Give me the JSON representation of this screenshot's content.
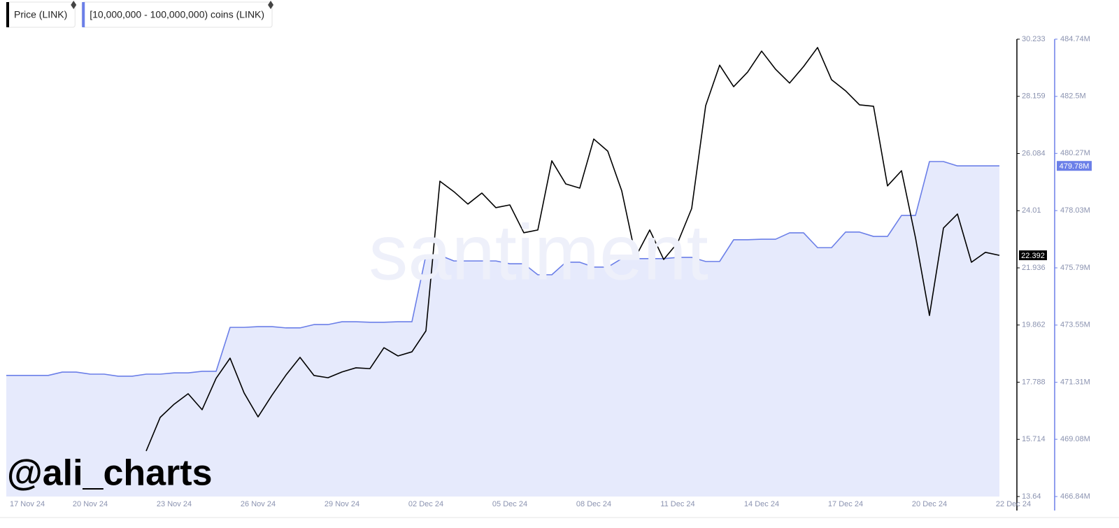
{
  "chart_data": {
    "type": "line",
    "watermark": "santiment",
    "credit": "@ali_charts",
    "categories": [
      "17 Nov 24",
      null,
      null,
      null,
      null,
      null,
      "20 Nov 24",
      null,
      null,
      null,
      null,
      null,
      "23 Nov 24",
      null,
      null,
      null,
      null,
      null,
      "26 Nov 24",
      null,
      null,
      null,
      null,
      null,
      "29 Nov 24",
      null,
      null,
      null,
      null,
      null,
      "02 Dec 24",
      null,
      null,
      null,
      null,
      null,
      "05 Dec 24",
      null,
      null,
      null,
      null,
      null,
      "08 Dec 24",
      null,
      null,
      null,
      null,
      null,
      "11 Dec 24",
      null,
      null,
      null,
      null,
      null,
      "14 Dec 24",
      null,
      null,
      null,
      null,
      null,
      "17 Dec 24",
      null,
      null,
      null,
      null,
      null,
      "20 Dec 24",
      null,
      null,
      null,
      null,
      null,
      "22 Dec 24"
    ],
    "series": [
      {
        "name": "Price (LINK)",
        "color": "#000000",
        "axis": "y",
        "values": [
          null,
          null,
          null,
          null,
          null,
          null,
          null,
          null,
          null,
          null,
          15.29,
          16.51,
          16.99,
          17.37,
          16.79,
          17.93,
          18.66,
          17.4,
          16.53,
          17.32,
          18.05,
          18.69,
          18.03,
          17.95,
          18.16,
          18.31,
          18.28,
          19.04,
          18.74,
          18.89,
          19.65,
          25.08,
          24.7,
          24.25,
          24.65,
          24.12,
          24.22,
          23.21,
          23.31,
          25.82,
          24.98,
          24.83,
          26.61,
          26.17,
          24.73,
          22.34,
          23.31,
          22.24,
          22.85,
          24.09,
          27.82,
          29.29,
          28.51,
          29.04,
          29.8,
          29.14,
          28.64,
          29.24,
          29.93,
          28.76,
          28.36,
          27.85,
          27.8,
          24.91,
          25.46,
          23.03,
          20.21,
          23.38,
          23.89,
          22.14,
          22.5,
          22.39,
          null
        ]
      },
      {
        "name": "[10,000,000 - 100,000,000) coins (LINK)",
        "color": "#6b7fe8",
        "area_color": "#e6eafc",
        "axis": "y2",
        "values": [
          471580000,
          471580000,
          471580000,
          471580000,
          471710000,
          471710000,
          471630000,
          471630000,
          471550000,
          471550000,
          471630000,
          471630000,
          471680000,
          471680000,
          471740000,
          471740000,
          473460000,
          473460000,
          473490000,
          473490000,
          473440000,
          473440000,
          473570000,
          473570000,
          473680000,
          473680000,
          473660000,
          473660000,
          473680000,
          473680000,
          476280000,
          476280000,
          476060000,
          476060000,
          476060000,
          476060000,
          475950000,
          475950000,
          475520000,
          475520000,
          476010000,
          476010000,
          475820000,
          475820000,
          476150000,
          476150000,
          476150000,
          476150000,
          476200000,
          476200000,
          476040000,
          476040000,
          476890000,
          476890000,
          476910000,
          476910000,
          477160000,
          477160000,
          476580000,
          476580000,
          477190000,
          477190000,
          477020000,
          477020000,
          477840000,
          477840000,
          479950000,
          479950000,
          479780000,
          479780000,
          479780000,
          479780000,
          null
        ]
      }
    ],
    "ylim": [
      13.64,
      30.233
    ],
    "yticks": [
      13.64,
      15.714,
      17.788,
      19.862,
      21.936,
      24.01,
      26.084,
      28.159,
      30.233
    ],
    "y2lim": [
      466840000,
      484740000
    ],
    "y2ticks": [
      {
        "value": 466840000,
        "label": "466.84M"
      },
      {
        "value": 469080000,
        "label": "469.08M"
      },
      {
        "value": 471310000,
        "label": "471.31M"
      },
      {
        "value": 473550000,
        "label": "473.55M"
      },
      {
        "value": 475790000,
        "label": "475.79M"
      },
      {
        "value": 478030000,
        "label": "478.03M"
      },
      {
        "value": 480270000,
        "label": "480.27M"
      },
      {
        "value": 482500000,
        "label": "482.5M"
      },
      {
        "value": 484740000,
        "label": "484.74M"
      }
    ],
    "annotations": [
      {
        "axis": "y",
        "value": 22.392,
        "label": "22.392"
      },
      {
        "axis": "y2",
        "value": 479780000,
        "label": "479.78M"
      }
    ]
  }
}
